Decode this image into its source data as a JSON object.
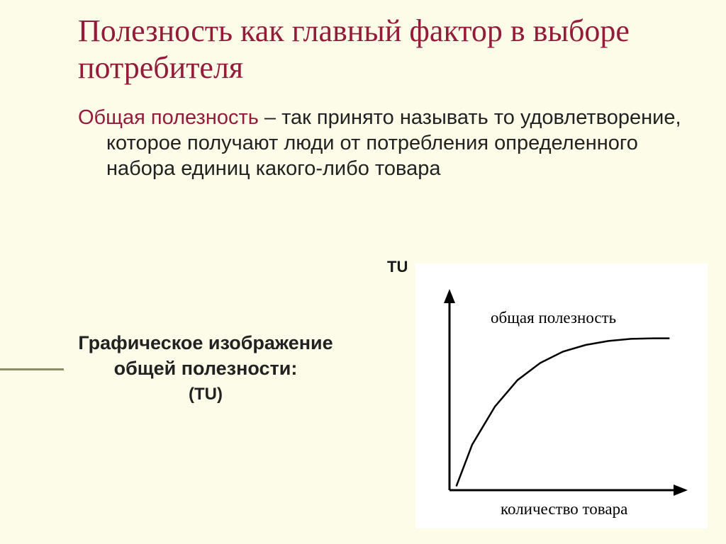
{
  "slide": {
    "title": "Полезность как главный фактор в выборе потребителя",
    "term": "Общая полезность",
    "body_rest": " – так принято называть то удовлетворение, которое получают люди от потребления определенного набора единиц какого-либо товара",
    "tu_label": "ТU",
    "caption_line1": "Графическое изображение",
    "caption_line2": "общей полезности:",
    "caption_sub": "(ТU)"
  },
  "chart": {
    "type": "line",
    "background_color": "#ffffff",
    "axis_color": "#000000",
    "axis_width": 3,
    "curve_color": "#000000",
    "curve_width": 2.5,
    "y_axis_label": "общая полезность",
    "x_axis_label": "количество товара",
    "label_fontsize": 23,
    "label_fontfamily": "Times New Roman",
    "xlim": [
      0,
      100
    ],
    "ylim": [
      0,
      100
    ],
    "curve_points": [
      {
        "x": 3,
        "y": 2
      },
      {
        "x": 10,
        "y": 24
      },
      {
        "x": 20,
        "y": 44
      },
      {
        "x": 30,
        "y": 58
      },
      {
        "x": 40,
        "y": 67
      },
      {
        "x": 50,
        "y": 73
      },
      {
        "x": 60,
        "y": 76.5
      },
      {
        "x": 70,
        "y": 78.6
      },
      {
        "x": 80,
        "y": 79.7
      },
      {
        "x": 90,
        "y": 80
      },
      {
        "x": 97,
        "y": 80
      }
    ]
  },
  "colors": {
    "slide_bg": "#fcfce9",
    "title": "#941c3b",
    "text": "#222222",
    "side_rule": "#8c8c67"
  }
}
